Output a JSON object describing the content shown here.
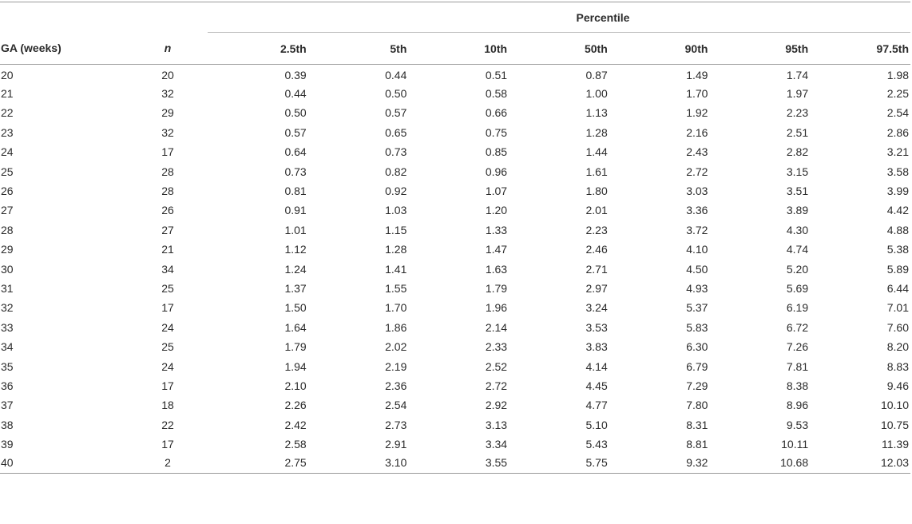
{
  "table": {
    "group_header": "Percentile",
    "columns": {
      "ga": "GA (weeks)",
      "n": "n",
      "p1": "2.5th",
      "p2": "5th",
      "p3": "10th",
      "p4": "50th",
      "p5": "90th",
      "p6": "95th",
      "p7": "97.5th"
    },
    "rows": [
      [
        "20",
        "20",
        "0.39",
        "0.44",
        "0.51",
        "0.87",
        "1.49",
        "1.74",
        "1.98"
      ],
      [
        "21",
        "32",
        "0.44",
        "0.50",
        "0.58",
        "1.00",
        "1.70",
        "1.97",
        "2.25"
      ],
      [
        "22",
        "29",
        "0.50",
        "0.57",
        "0.66",
        "1.13",
        "1.92",
        "2.23",
        "2.54"
      ],
      [
        "23",
        "32",
        "0.57",
        "0.65",
        "0.75",
        "1.28",
        "2.16",
        "2.51",
        "2.86"
      ],
      [
        "24",
        "17",
        "0.64",
        "0.73",
        "0.85",
        "1.44",
        "2.43",
        "2.82",
        "3.21"
      ],
      [
        "25",
        "28",
        "0.73",
        "0.82",
        "0.96",
        "1.61",
        "2.72",
        "3.15",
        "3.58"
      ],
      [
        "26",
        "28",
        "0.81",
        "0.92",
        "1.07",
        "1.80",
        "3.03",
        "3.51",
        "3.99"
      ],
      [
        "27",
        "26",
        "0.91",
        "1.03",
        "1.20",
        "2.01",
        "3.36",
        "3.89",
        "4.42"
      ],
      [
        "28",
        "27",
        "1.01",
        "1.15",
        "1.33",
        "2.23",
        "3.72",
        "4.30",
        "4.88"
      ],
      [
        "29",
        "21",
        "1.12",
        "1.28",
        "1.47",
        "2.46",
        "4.10",
        "4.74",
        "5.38"
      ],
      [
        "30",
        "34",
        "1.24",
        "1.41",
        "1.63",
        "2.71",
        "4.50",
        "5.20",
        "5.89"
      ],
      [
        "31",
        "25",
        "1.37",
        "1.55",
        "1.79",
        "2.97",
        "4.93",
        "5.69",
        "6.44"
      ],
      [
        "32",
        "17",
        "1.50",
        "1.70",
        "1.96",
        "3.24",
        "5.37",
        "6.19",
        "7.01"
      ],
      [
        "33",
        "24",
        "1.64",
        "1.86",
        "2.14",
        "3.53",
        "5.83",
        "6.72",
        "7.60"
      ],
      [
        "34",
        "25",
        "1.79",
        "2.02",
        "2.33",
        "3.83",
        "6.30",
        "7.26",
        "8.20"
      ],
      [
        "35",
        "24",
        "1.94",
        "2.19",
        "2.52",
        "4.14",
        "6.79",
        "7.81",
        "8.83"
      ],
      [
        "36",
        "17",
        "2.10",
        "2.36",
        "2.72",
        "4.45",
        "7.29",
        "8.38",
        "9.46"
      ],
      [
        "37",
        "18",
        "2.26",
        "2.54",
        "2.92",
        "4.77",
        "7.80",
        "8.96",
        "10.10"
      ],
      [
        "38",
        "22",
        "2.42",
        "2.73",
        "3.13",
        "5.10",
        "8.31",
        "9.53",
        "10.75"
      ],
      [
        "39",
        "17",
        "2.58",
        "2.91",
        "3.34",
        "5.43",
        "8.81",
        "10.11",
        "11.39"
      ],
      [
        "40",
        "2",
        "2.75",
        "3.10",
        "3.55",
        "5.75",
        "9.32",
        "10.68",
        "12.03"
      ]
    ]
  }
}
